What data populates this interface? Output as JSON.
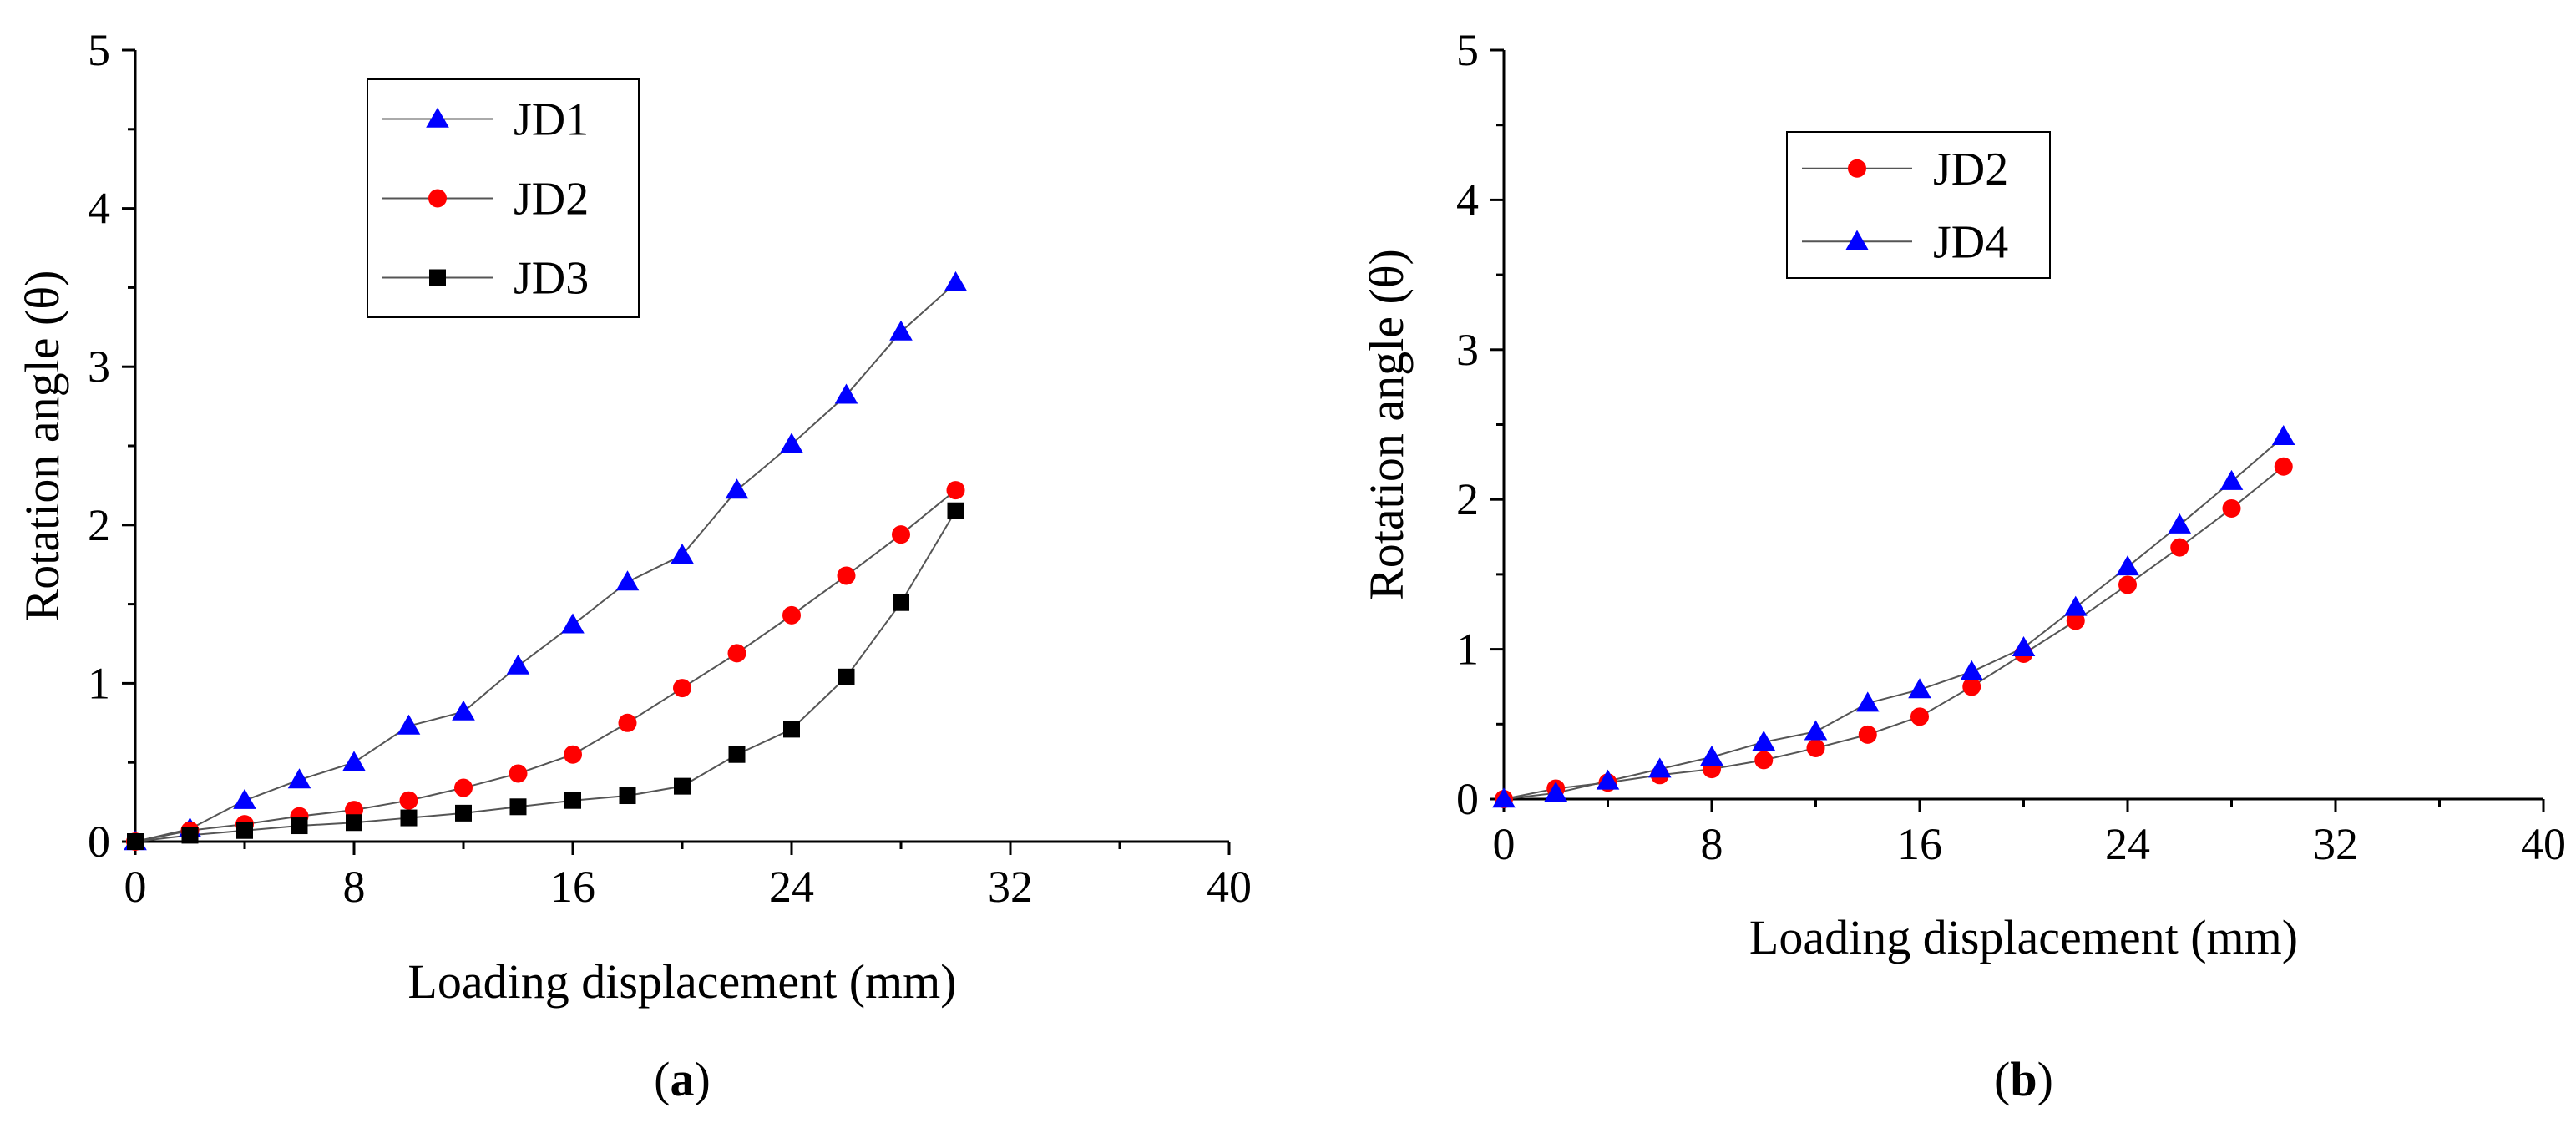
{
  "chart_data": [
    {
      "type": "line",
      "panel_label": "a",
      "title": "",
      "xlabel": "Loading displacement (mm)",
      "ylabel": "Rotation angle (θ)",
      "xlim": [
        0,
        40
      ],
      "ylim": [
        0,
        5
      ],
      "xticks": [
        0,
        8,
        16,
        24,
        32,
        40
      ],
      "yticks": [
        0,
        1,
        2,
        3,
        4,
        5
      ],
      "grid": false,
      "legend_position": "top-left",
      "x": [
        0,
        2,
        4,
        6,
        8,
        10,
        12,
        14,
        16,
        18,
        20,
        22,
        24,
        26,
        28,
        30
      ],
      "series": [
        {
          "name": "JD1",
          "marker": "triangle",
          "color": "#0000ff",
          "values": [
            0.0,
            0.08,
            0.26,
            0.39,
            0.5,
            0.73,
            0.82,
            1.11,
            1.37,
            1.64,
            1.81,
            2.22,
            2.51,
            2.82,
            3.22,
            3.53
          ]
        },
        {
          "name": "JD2",
          "marker": "circle",
          "color": "#ff0000",
          "values": [
            0.0,
            0.07,
            0.11,
            0.16,
            0.2,
            0.26,
            0.34,
            0.43,
            0.55,
            0.75,
            0.97,
            1.19,
            1.43,
            1.68,
            1.94,
            2.22
          ]
        },
        {
          "name": "JD3",
          "marker": "square",
          "color": "#000000",
          "values": [
            0.0,
            0.04,
            0.07,
            0.1,
            0.12,
            0.15,
            0.18,
            0.22,
            0.26,
            0.29,
            0.35,
            0.55,
            0.71,
            1.04,
            1.51,
            2.09
          ]
        }
      ]
    },
    {
      "type": "line",
      "panel_label": "b",
      "title": "",
      "xlabel": "Loading displacement (mm)",
      "ylabel": "Rotation angle (θ)",
      "xlim": [
        0,
        40
      ],
      "ylim": [
        0,
        5
      ],
      "xticks": [
        0,
        8,
        16,
        24,
        32,
        40
      ],
      "yticks": [
        0,
        1,
        2,
        3,
        4,
        5
      ],
      "grid": false,
      "legend_position": "top-left",
      "x": [
        0,
        2,
        4,
        6,
        8,
        10,
        12,
        14,
        16,
        18,
        20,
        22,
        24,
        26,
        28,
        30
      ],
      "series": [
        {
          "name": "JD2",
          "marker": "circle",
          "color": "#ff0000",
          "values": [
            0.0,
            0.07,
            0.11,
            0.16,
            0.2,
            0.26,
            0.34,
            0.43,
            0.55,
            0.75,
            0.97,
            1.19,
            1.43,
            1.68,
            1.94,
            2.22
          ]
        },
        {
          "name": "JD4",
          "marker": "triangle",
          "color": "#0000ff",
          "values": [
            0.0,
            0.04,
            0.12,
            0.2,
            0.28,
            0.38,
            0.45,
            0.64,
            0.73,
            0.85,
            1.01,
            1.28,
            1.55,
            1.83,
            2.12,
            2.42
          ]
        }
      ]
    }
  ]
}
